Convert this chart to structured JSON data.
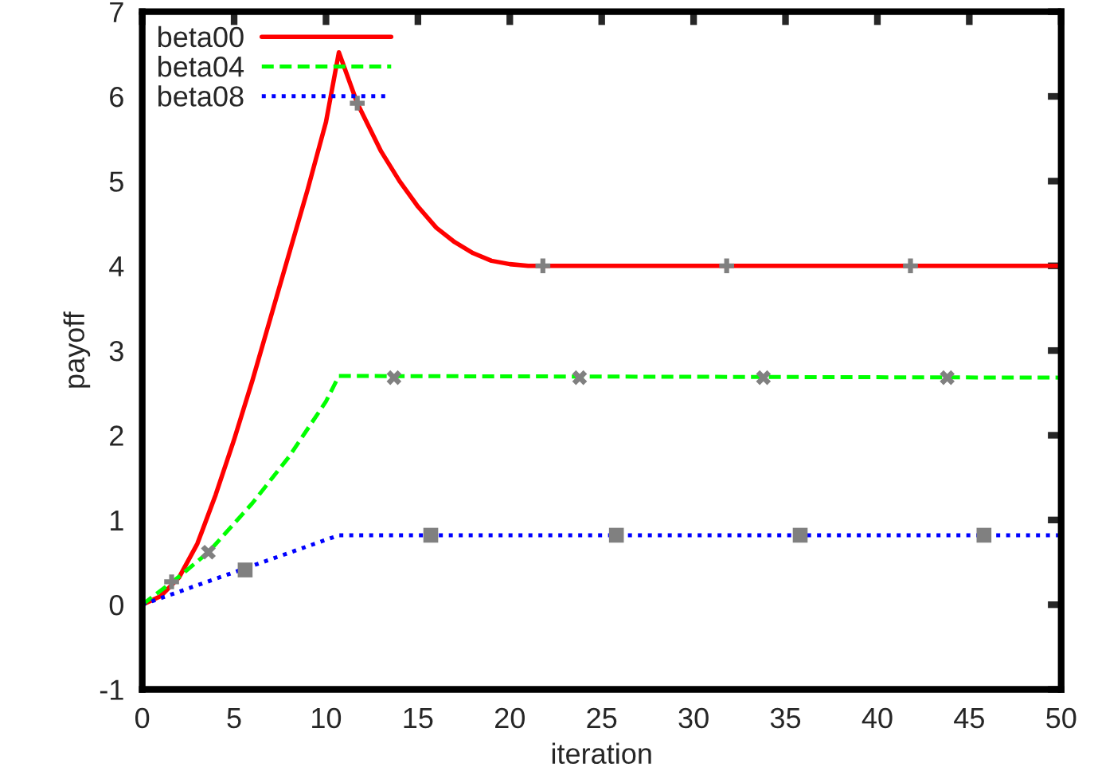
{
  "chart_data": {
    "type": "line",
    "xlabel": "iteration",
    "ylabel": "payoff",
    "xlim": [
      0,
      50
    ],
    "ylim": [
      -1,
      7
    ],
    "xticks": [
      0,
      5,
      10,
      15,
      20,
      25,
      30,
      35,
      40,
      45,
      50
    ],
    "yticks": [
      -1,
      0,
      1,
      2,
      3,
      4,
      5,
      6,
      7
    ],
    "grid": false,
    "legend": "top left",
    "series": [
      {
        "name": "beta00",
        "color": "#ff0000",
        "line_style": "solid",
        "x": [
          0,
          1,
          2,
          3,
          4,
          5,
          6,
          7,
          8,
          9,
          10,
          10.7,
          11.7,
          13,
          14,
          15,
          16,
          17,
          18,
          19,
          20,
          21,
          50
        ],
        "values": [
          0,
          0.1,
          0.32,
          0.72,
          1.3,
          1.95,
          2.65,
          3.4,
          4.15,
          4.9,
          5.7,
          6.52,
          5.92,
          5.35,
          5.0,
          4.7,
          4.45,
          4.28,
          4.15,
          4.06,
          4.02,
          4.0,
          4.0
        ]
      },
      {
        "name": "beta04",
        "color": "#00ff00",
        "line_style": "dashed",
        "x": [
          0,
          2,
          3.6,
          6,
          8,
          10,
          10.7,
          50
        ],
        "values": [
          0,
          0.33,
          0.62,
          1.2,
          1.75,
          2.4,
          2.7,
          2.68
        ]
      },
      {
        "name": "beta08",
        "color": "#0000ff",
        "line_style": "dotted",
        "x": [
          0,
          10.7,
          50
        ],
        "values": [
          0,
          0.82,
          0.82
        ]
      },
      {
        "type": "scatter",
        "color": "#808080",
        "marker": "cross",
        "x": [
          1.6,
          11.7,
          21.8,
          31.8,
          41.8
        ],
        "values": [
          0.27,
          5.92,
          4.0,
          4.0,
          4.0
        ]
      },
      {
        "type": "scatter",
        "color": "#808080",
        "marker": "x",
        "x": [
          3.6,
          13.7,
          23.8,
          33.8,
          43.8
        ],
        "values": [
          0.62,
          2.68,
          2.68,
          2.68,
          2.68
        ]
      },
      {
        "type": "scatter",
        "color": "#808080",
        "marker": "square",
        "x": [
          5.6,
          15.7,
          25.8,
          35.8,
          45.8
        ],
        "values": [
          0.41,
          0.82,
          0.82,
          0.82,
          0.82
        ]
      }
    ]
  }
}
